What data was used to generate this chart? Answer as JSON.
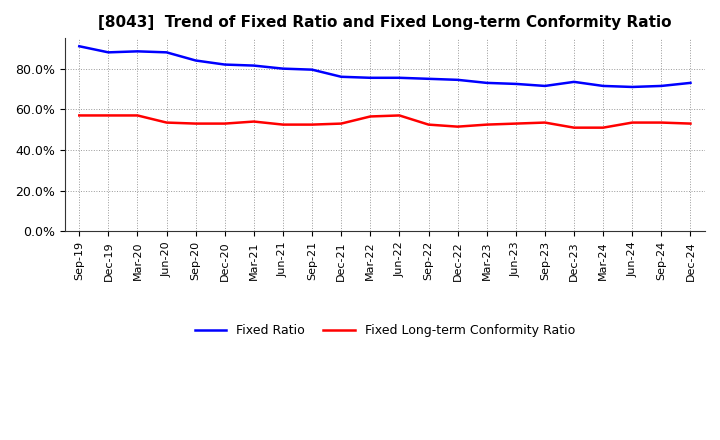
{
  "title": "[8043]  Trend of Fixed Ratio and Fixed Long-term Conformity Ratio",
  "x_labels": [
    "Sep-19",
    "Dec-19",
    "Mar-20",
    "Jun-20",
    "Sep-20",
    "Dec-20",
    "Mar-21",
    "Jun-21",
    "Sep-21",
    "Dec-21",
    "Mar-22",
    "Jun-22",
    "Sep-22",
    "Dec-22",
    "Mar-23",
    "Jun-23",
    "Sep-23",
    "Dec-23",
    "Mar-24",
    "Jun-24",
    "Sep-24",
    "Dec-24"
  ],
  "fixed_ratio": [
    91.0,
    88.0,
    88.5,
    88.0,
    84.0,
    82.0,
    81.5,
    80.0,
    79.5,
    76.0,
    75.5,
    75.5,
    75.0,
    74.5,
    73.0,
    72.5,
    71.5,
    73.5,
    71.5,
    71.0,
    71.5,
    73.0
  ],
  "fixed_lt_ratio": [
    57.0,
    57.0,
    57.0,
    53.5,
    53.0,
    53.0,
    54.0,
    52.5,
    52.5,
    53.0,
    56.5,
    57.0,
    52.5,
    51.5,
    52.5,
    53.0,
    53.5,
    51.0,
    51.0,
    53.5,
    53.5,
    53.0
  ],
  "fixed_ratio_color": "#0000FF",
  "fixed_lt_ratio_color": "#FF0000",
  "ylim": [
    0,
    95
  ],
  "yticks": [
    0,
    20,
    40,
    60,
    80
  ],
  "ytick_labels": [
    "0.0%",
    "20.0%",
    "40.0%",
    "60.0%",
    "80.0%"
  ],
  "background_color": "#FFFFFF",
  "plot_bg_color": "#FFFFFF",
  "grid_color": "#999999",
  "legend_fixed_ratio": "Fixed Ratio",
  "legend_fixed_lt_ratio": "Fixed Long-term Conformity Ratio"
}
